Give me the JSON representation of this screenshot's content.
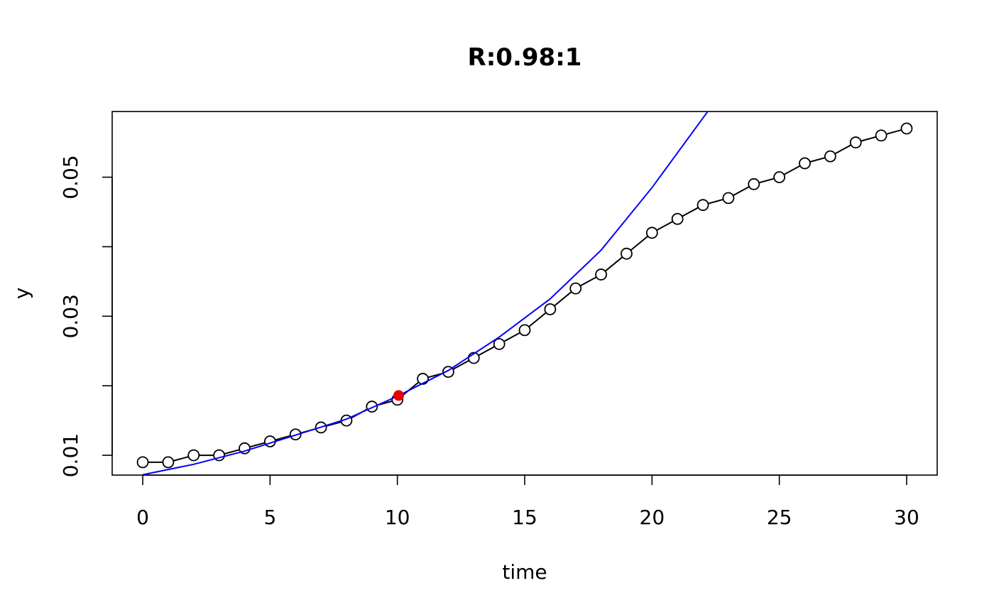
{
  "chart_data": {
    "type": "scatter",
    "title": "R:0.98:1",
    "xlabel": "time",
    "ylabel": "y",
    "xlim": [
      -1.2,
      31.2
    ],
    "ylim": [
      0.00715,
      0.05945
    ],
    "x_ticks": [
      0,
      5,
      10,
      15,
      20,
      25,
      30
    ],
    "x_tick_labels": [
      "0",
      "5",
      "10",
      "15",
      "20",
      "25",
      "30"
    ],
    "y_ticks": [
      0.01,
      0.02,
      0.03,
      0.04,
      0.05
    ],
    "y_tick_labels": [
      "0.01",
      "",
      "0.03",
      "",
      "0.05"
    ],
    "grid": false,
    "legend": "none",
    "series": [
      {
        "style": "points-and-line",
        "color": "#000000",
        "x": [
          0,
          1,
          2,
          3,
          4,
          5,
          6,
          7,
          8,
          9,
          10,
          11,
          12,
          13,
          14,
          15,
          16,
          17,
          18,
          19,
          20,
          21,
          22,
          23,
          24,
          25,
          26,
          27,
          28,
          29,
          30
        ],
        "y": [
          0.009,
          0.009,
          0.01,
          0.01,
          0.011,
          0.012,
          0.013,
          0.014,
          0.015,
          0.017,
          0.018,
          0.021,
          0.022,
          0.024,
          0.026,
          0.028,
          0.031,
          0.034,
          0.036,
          0.039,
          0.042,
          0.044,
          0.046,
          0.047,
          0.049,
          0.05,
          0.052,
          0.053,
          0.055,
          0.056,
          0.057
        ]
      },
      {
        "style": "line",
        "color": "#0000ff",
        "x": [
          0,
          2,
          4,
          6,
          8,
          10,
          12,
          14,
          16,
          18,
          20,
          22,
          22.3
        ],
        "y": [
          0.0072,
          0.0087,
          0.0106,
          0.0129,
          0.0152,
          0.0185,
          0.0222,
          0.027,
          0.0325,
          0.0395,
          0.0485,
          0.0585,
          0.06
        ]
      },
      {
        "style": "filled-point",
        "color": "#e60000",
        "x": [
          10.05
        ],
        "y": [
          0.0186
        ]
      }
    ]
  }
}
